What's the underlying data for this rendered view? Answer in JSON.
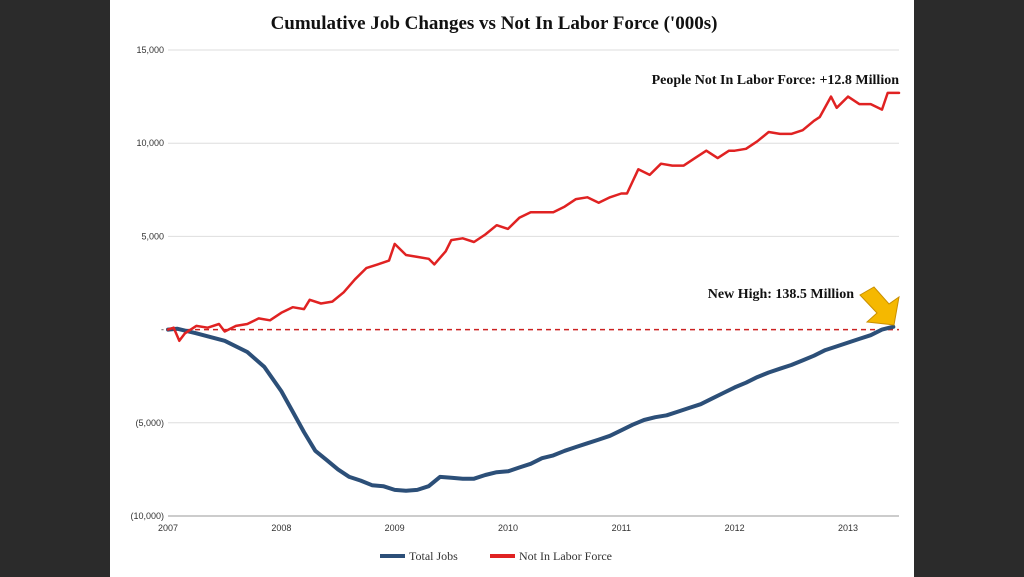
{
  "chart_data": {
    "type": "line",
    "title": "Cumulative Job Changes vs Not In Labor Force  ('000s)",
    "xlabel": "",
    "ylabel": "",
    "xlim": [
      2007.0,
      2013.45
    ],
    "ylim": [
      -10000,
      15000
    ],
    "x_ticks": [
      {
        "value": 2007,
        "label": "2007"
      },
      {
        "value": 2008,
        "label": "2008"
      },
      {
        "value": 2009,
        "label": "2009"
      },
      {
        "value": 2010,
        "label": "2010"
      },
      {
        "value": 2011,
        "label": "2011"
      },
      {
        "value": 2012,
        "label": "2012"
      },
      {
        "value": 2013,
        "label": "2013"
      }
    ],
    "y_ticks": [
      {
        "value": 15000,
        "label": "15,000"
      },
      {
        "value": 10000,
        "label": "10,000"
      },
      {
        "value": 5000,
        "label": "5,000"
      },
      {
        "value": 0,
        "label": "-"
      },
      {
        "value": -5000,
        "label": "(5,000)"
      },
      {
        "value": -10000,
        "label": "(10,000)"
      }
    ],
    "grid": true,
    "reference_line": {
      "value": 0,
      "style": "dashed",
      "color": "#cc2222"
    },
    "series": [
      {
        "name": "Total Jobs",
        "color": "#2c4f78",
        "x": [
          2007.0,
          2007.08,
          2007.25,
          2007.5,
          2007.7,
          2007.85,
          2008.0,
          2008.1,
          2008.2,
          2008.3,
          2008.4,
          2008.5,
          2008.6,
          2008.7,
          2008.8,
          2008.9,
          2009.0,
          2009.1,
          2009.2,
          2009.3,
          2009.4,
          2009.5,
          2009.6,
          2009.7,
          2009.8,
          2009.9,
          2010.0,
          2010.1,
          2010.2,
          2010.3,
          2010.4,
          2010.5,
          2010.6,
          2010.7,
          2010.8,
          2010.9,
          2011.0,
          2011.1,
          2011.2,
          2011.3,
          2011.4,
          2011.5,
          2011.6,
          2011.7,
          2011.8,
          2011.9,
          2012.0,
          2012.1,
          2012.2,
          2012.3,
          2012.4,
          2012.5,
          2012.6,
          2012.7,
          2012.8,
          2012.9,
          2013.0,
          2013.1,
          2013.2,
          2013.3,
          2013.4
        ],
        "values": [
          0,
          50,
          -200,
          -600,
          -1200,
          -2000,
          -3300,
          -4400,
          -5500,
          -6500,
          -7000,
          -7500,
          -7900,
          -8100,
          -8350,
          -8400,
          -8600,
          -8650,
          -8600,
          -8400,
          -7900,
          -7950,
          -8000,
          -8000,
          -7800,
          -7650,
          -7600,
          -7400,
          -7200,
          -6900,
          -6750,
          -6500,
          -6300,
          -6100,
          -5900,
          -5700,
          -5400,
          -5100,
          -4850,
          -4700,
          -4600,
          -4400,
          -4200,
          -4000,
          -3700,
          -3400,
          -3100,
          -2850,
          -2550,
          -2300,
          -2100,
          -1900,
          -1650,
          -1400,
          -1100,
          -900,
          -700,
          -500,
          -300,
          0,
          150
        ]
      },
      {
        "name": "Not In Labor Force",
        "color": "#e02222",
        "x": [
          2007.0,
          2007.05,
          2007.1,
          2007.15,
          2007.25,
          2007.35,
          2007.45,
          2007.5,
          2007.6,
          2007.7,
          2007.8,
          2007.9,
          2008.0,
          2008.1,
          2008.2,
          2008.25,
          2008.35,
          2008.45,
          2008.55,
          2008.65,
          2008.75,
          2008.85,
          2008.95,
          2009.0,
          2009.1,
          2009.2,
          2009.3,
          2009.35,
          2009.45,
          2009.5,
          2009.6,
          2009.7,
          2009.8,
          2009.9,
          2010.0,
          2010.1,
          2010.2,
          2010.3,
          2010.4,
          2010.5,
          2010.6,
          2010.7,
          2010.8,
          2010.9,
          2011.0,
          2011.05,
          2011.15,
          2011.25,
          2011.35,
          2011.45,
          2011.55,
          2011.65,
          2011.75,
          2011.85,
          2011.95,
          2012.0,
          2012.1,
          2012.2,
          2012.3,
          2012.4,
          2012.5,
          2012.6,
          2012.7,
          2012.75,
          2012.85,
          2012.9,
          2013.0,
          2013.1,
          2013.2,
          2013.3,
          2013.35,
          2013.45
        ],
        "values": [
          0,
          100,
          -600,
          -200,
          200,
          100,
          300,
          -100,
          200,
          300,
          600,
          500,
          900,
          1200,
          1100,
          1600,
          1400,
          1500,
          2000,
          2700,
          3300,
          3500,
          3700,
          4600,
          4000,
          3900,
          3800,
          3500,
          4200,
          4800,
          4900,
          4700,
          5100,
          5600,
          5400,
          6000,
          6300,
          6300,
          6300,
          6600,
          7000,
          7100,
          6800,
          7100,
          7300,
          7300,
          8600,
          8300,
          8900,
          8800,
          8800,
          9200,
          9600,
          9200,
          9600,
          9600,
          9700,
          10100,
          10600,
          10500,
          10500,
          10700,
          11200,
          11400,
          12500,
          11900,
          12500,
          12100,
          12100,
          11800,
          12700,
          12700
        ]
      }
    ],
    "annotations": [
      {
        "text": "People Not In Labor Force: +12.8 Million",
        "x": 2013.45,
        "y": 12750
      },
      {
        "text": "New High: 138.5 Million",
        "x": 2013.4,
        "y": 150
      }
    ],
    "legend": {
      "position": "bottom",
      "entries": [
        "Total Jobs",
        "Not In Labor Force"
      ]
    }
  }
}
